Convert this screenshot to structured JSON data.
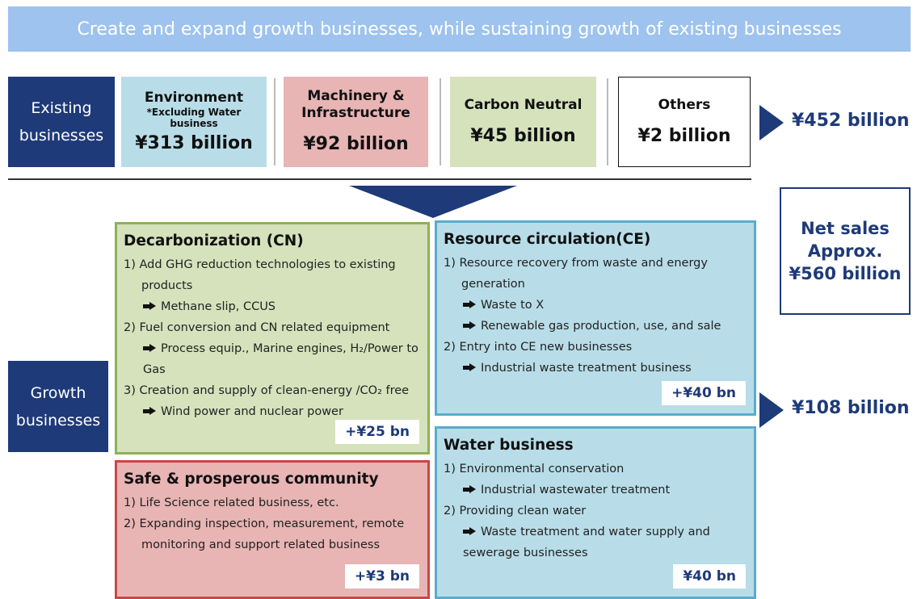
{
  "banner": "Create and expand growth businesses, while sustaining growth of existing businesses",
  "existing": {
    "label": "Existing businesses",
    "total": "¥452 billion",
    "items": [
      {
        "name": "Environment",
        "note": "*Excluding Water business",
        "value": "¥313 billion"
      },
      {
        "name": "Machinery & Infrastructure",
        "value": "¥92 billion"
      },
      {
        "name": "Carbon Neutral",
        "value": "¥45 billion"
      },
      {
        "name": "Others",
        "value": "¥2 billion"
      }
    ]
  },
  "net_sales": [
    "Net sales",
    "Approx.",
    "¥560 billion"
  ],
  "growth": {
    "label": "Growth businesses",
    "total": "¥108 billion",
    "boxes": [
      {
        "title": "Decarbonization (CN)",
        "amount": "+¥25 bn",
        "items": [
          {
            "text": "1) Add GHG reduction technologies to existing products",
            "arrows": [
              "Methane slip, CCUS"
            ]
          },
          {
            "text": "2) Fuel conversion and CN related equipment",
            "arrows": [
              "Process equip., Marine engines, H₂/Power to Gas"
            ]
          },
          {
            "text": "3) Creation and supply of clean-energy /CO₂ free",
            "arrows": [
              "Wind power and nuclear power"
            ]
          }
        ]
      },
      {
        "title": "Resource circulation(CE)",
        "amount": "+¥40 bn",
        "items": [
          {
            "text": "1) Resource recovery from waste and energy generation",
            "arrows": [
              "Waste to X",
              "Renewable gas production, use, and sale"
            ]
          },
          {
            "text": "2) Entry into CE new businesses",
            "arrows": [
              "Industrial waste treatment business"
            ]
          }
        ]
      },
      {
        "title": "Safe & prosperous community",
        "amount": "+¥3 bn",
        "items": [
          {
            "text": "1) Life Science related business, etc.",
            "arrows": []
          },
          {
            "text": "2) Expanding inspection, measurement, remote monitoring and support related business",
            "arrows": []
          }
        ]
      },
      {
        "title": "Water business",
        "amount": "¥40 bn",
        "items": [
          {
            "text": "1) Environmental conservation",
            "arrows": [
              "Industrial wastewater treatment"
            ]
          },
          {
            "text": "2) Providing clean water",
            "arrows": [
              "Waste treatment and water supply and sewerage businesses"
            ]
          }
        ]
      }
    ]
  }
}
